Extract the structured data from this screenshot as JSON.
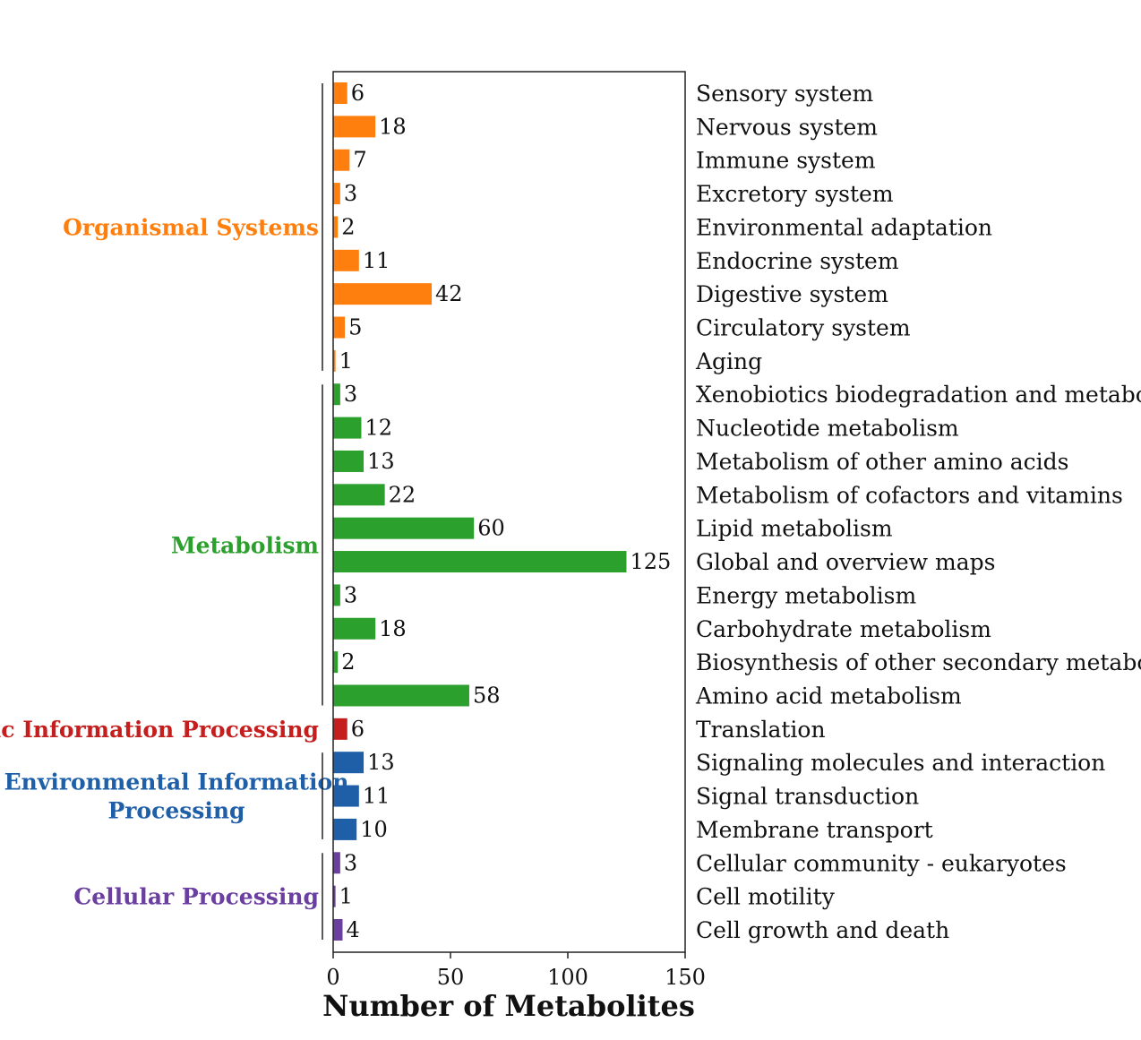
{
  "chart_data": {
    "type": "bar",
    "orientation": "horizontal",
    "xlabel": "Number of Metabolites",
    "xlim": [
      0,
      150
    ],
    "xticks": [
      0,
      50,
      100,
      150
    ],
    "grid": false,
    "groups": [
      {
        "name": "Organismal Systems",
        "color": "#FF7F0E",
        "categories": [
          "Sensory system",
          "Nervous system",
          "Immune system",
          "Excretory system",
          "Environmental adaptation",
          "Endocrine system",
          "Digestive system",
          "Circulatory system",
          "Aging"
        ],
        "values": [
          6,
          18,
          7,
          3,
          2,
          11,
          42,
          5,
          1
        ]
      },
      {
        "name": "Metabolism",
        "color": "#2CA02C",
        "categories": [
          "Xenobiotics biodegradation and metabolism",
          "Nucleotide metabolism",
          "Metabolism of other amino acids",
          "Metabolism of cofactors and vitamins",
          "Lipid metabolism",
          "Global and overview maps",
          "Energy metabolism",
          "Carbohydrate metabolism",
          "Biosynthesis of other secondary metabolites",
          "Amino acid metabolism"
        ],
        "values": [
          3,
          12,
          13,
          22,
          60,
          125,
          3,
          18,
          2,
          58
        ]
      },
      {
        "name": "Genetic Information Processing",
        "color": "#C41E1E",
        "categories": [
          "Translation"
        ],
        "values": [
          6
        ]
      },
      {
        "name": "Environmental Information Processing",
        "name_lines": [
          "Environmental Information",
          "Processing"
        ],
        "color": "#1F5FA8",
        "categories": [
          "Signaling molecules and interaction",
          "Signal transduction",
          "Membrane transport"
        ],
        "values": [
          13,
          11,
          10
        ]
      },
      {
        "name": "Cellular Processing",
        "color": "#6A3FA0",
        "categories": [
          "Cellular community - eukaryotes",
          "Cell motility",
          "Cell growth and death"
        ],
        "values": [
          3,
          1,
          4
        ]
      }
    ]
  }
}
